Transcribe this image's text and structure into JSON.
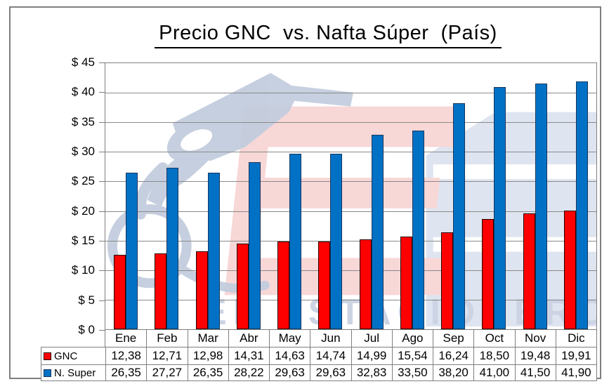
{
  "title": "Precio GNC  vs. Nafta Súper  (País)",
  "watermark": {
    "text": "EL ESTACIONERO"
  },
  "colors": {
    "gnc_fill": "#ff0000",
    "gnc_border": "#240000",
    "nsuper_fill": "#0071c5",
    "nsuper_border": "#17375e",
    "grid": "#8a8a8a",
    "frame": "#7f7f7f",
    "watermark_blue": "#c3cdde",
    "watermark_pink": "#f8d7d7",
    "watermark_block": "#dee4f0",
    "watermark_text": "#ccd4e4"
  },
  "chart_data": {
    "type": "bar",
    "title": "Precio GNC  vs. Nafta Súper  (País)",
    "xlabel": "",
    "ylabel": "",
    "ylim": [
      0,
      45
    ],
    "ytick_step": 5,
    "ytick_labels": [
      "$ 45",
      "$ 40",
      "$ 35",
      "$ 30",
      "$ 25",
      "$ 20",
      "$ 15",
      "$ 10",
      "$ 5",
      "$ 0"
    ],
    "grid": true,
    "legend_position": "table-left",
    "categories": [
      "Ene",
      "Feb",
      "Mar",
      "Abr",
      "May",
      "Jun",
      "Jul",
      "Ago",
      "Sep",
      "Oct",
      "Nov",
      "Dic"
    ],
    "series": [
      {
        "name": "GNC",
        "values": [
          12.38,
          12.71,
          12.98,
          14.31,
          14.63,
          14.74,
          14.99,
          15.54,
          16.24,
          18.5,
          19.48,
          19.91
        ],
        "labels": [
          "12,38",
          "12,71",
          "12,98",
          "14,31",
          "14,63",
          "14,74",
          "14,99",
          "15,54",
          "16,24",
          "18,50",
          "19,48",
          "19,91"
        ]
      },
      {
        "name": "N. Super",
        "values": [
          26.35,
          27.27,
          26.35,
          28.22,
          29.63,
          29.63,
          32.83,
          33.5,
          38.2,
          41.0,
          41.5,
          41.9
        ],
        "labels": [
          "26,35",
          "27,27",
          "26,35",
          "28,22",
          "29,63",
          "29,63",
          "32,83",
          "33,50",
          "38,20",
          "41,00",
          "41,50",
          "41,90"
        ]
      }
    ]
  }
}
